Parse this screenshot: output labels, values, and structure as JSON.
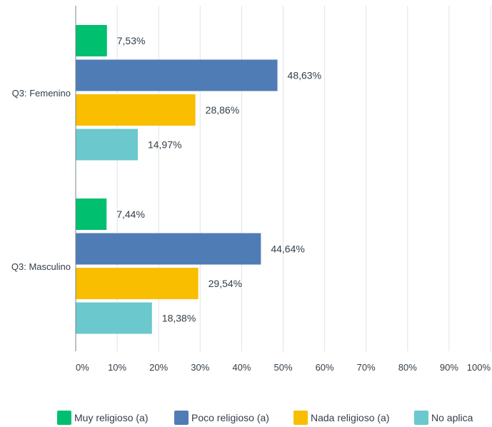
{
  "chart_data": {
    "type": "bar",
    "orientation": "horizontal",
    "categories": [
      "Q3: Femenino",
      "Q3: Masculino"
    ],
    "series": [
      {
        "name": "Muy religioso (a)",
        "color": "#00bf6f",
        "values": [
          7.53,
          7.44
        ],
        "labels": [
          "7,53%",
          "7,44%"
        ]
      },
      {
        "name": "Poco religioso (a)",
        "color": "#507cb6",
        "values": [
          48.63,
          44.64
        ],
        "labels": [
          "48,63%",
          "44,64%"
        ]
      },
      {
        "name": "Nada religioso (a)",
        "color": "#f9be00",
        "values": [
          28.86,
          29.54
        ],
        "labels": [
          "28,86%",
          "29,54%"
        ]
      },
      {
        "name": "No aplica",
        "color": "#6bc8cd",
        "values": [
          14.97,
          18.38
        ],
        "labels": [
          "14,97%",
          "18,38%"
        ]
      }
    ],
    "xlim": [
      0,
      100
    ],
    "x_ticks": [
      0,
      10,
      20,
      30,
      40,
      50,
      60,
      70,
      80,
      90,
      100
    ],
    "x_tick_labels": [
      "0%",
      "10%",
      "20%",
      "30%",
      "40%",
      "50%",
      "60%",
      "70%",
      "80%",
      "90%",
      "100%"
    ],
    "grid": true,
    "legend_position": "bottom"
  }
}
